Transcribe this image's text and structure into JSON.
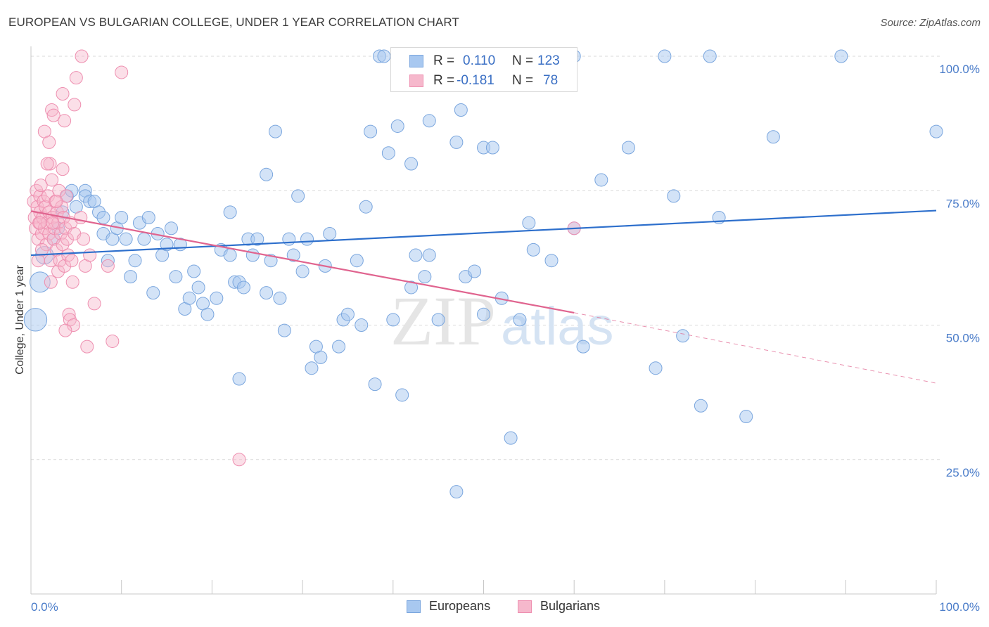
{
  "header": {
    "title": "EUROPEAN VS BULGARIAN COLLEGE, UNDER 1 YEAR CORRELATION CHART",
    "source": "Source: ZipAtlas.com"
  },
  "legend": {
    "rows": [
      {
        "r_label": "R =",
        "r_value": "0.110",
        "n_label": "N =",
        "n_value": "123"
      },
      {
        "r_label": "R =",
        "r_value": "-0.181",
        "n_label": "N =",
        "n_value": "78"
      }
    ]
  },
  "bottom_legend": [
    "Europeans",
    "Bulgarians"
  ],
  "watermark": {
    "zip": "ZIP",
    "atlas": "atlas"
  },
  "colors": {
    "europeans_fill": "#a8c8f0",
    "europeans_stroke": "#7aa6de",
    "europeans_line": "#2d6fcc",
    "bulgarians_fill": "#f6b8cc",
    "bulgarians_stroke": "#ee8fb0",
    "bulgarians_line": "#e0648f",
    "axis_label": "#4a7cc9",
    "grid": "#d9d9d9"
  },
  "chart_data": {
    "type": "scatter",
    "title": "EUROPEAN VS BULGARIAN COLLEGE, UNDER 1 YEAR CORRELATION CHART",
    "xlabel": "",
    "ylabel": "College, Under 1 year",
    "xlim": [
      0,
      100
    ],
    "ylim": [
      0,
      100
    ],
    "x_tick_labels": [
      "0.0%",
      "100.0%"
    ],
    "y_tick_labels": [
      "25.0%",
      "50.0%",
      "75.0%",
      "100.0%"
    ],
    "y_ticks": [
      25,
      50,
      75,
      100
    ],
    "grid": true,
    "legend_position": "top-center",
    "series": [
      {
        "name": "Europeans",
        "r": 0.11,
        "n": 123,
        "trend": {
          "x": [
            0,
            100
          ],
          "y": [
            63,
            71.3
          ]
        },
        "points": [
          [
            0.5,
            51,
            18
          ],
          [
            1,
            58,
            16
          ],
          [
            1.5,
            63,
            14
          ],
          [
            2.5,
            66,
            10
          ],
          [
            3,
            68,
            10
          ],
          [
            3.5,
            71,
            10
          ],
          [
            4,
            74,
            10
          ],
          [
            4.5,
            75,
            10
          ],
          [
            5,
            72,
            10
          ],
          [
            6,
            75,
            10
          ],
          [
            6,
            74,
            10
          ],
          [
            6.5,
            73,
            10
          ],
          [
            7,
            73,
            10
          ],
          [
            7.5,
            71,
            10
          ],
          [
            8,
            67,
            10
          ],
          [
            8,
            70,
            10
          ],
          [
            8.5,
            62,
            10
          ],
          [
            9,
            66,
            10
          ],
          [
            9.5,
            68,
            10
          ],
          [
            10,
            70,
            10
          ],
          [
            10.5,
            66,
            10
          ],
          [
            11,
            59,
            10
          ],
          [
            11.5,
            62,
            10
          ],
          [
            12,
            69,
            10
          ],
          [
            12.5,
            66,
            10
          ],
          [
            13,
            70,
            10
          ],
          [
            13.5,
            56,
            10
          ],
          [
            14,
            67,
            10
          ],
          [
            14.5,
            63,
            10
          ],
          [
            15,
            65,
            10
          ],
          [
            15.5,
            68,
            10
          ],
          [
            16,
            59,
            10
          ],
          [
            16.5,
            65,
            10
          ],
          [
            17,
            53,
            10
          ],
          [
            17.5,
            55,
            10
          ],
          [
            18,
            60,
            10
          ],
          [
            18.5,
            57,
            10
          ],
          [
            19,
            54,
            10
          ],
          [
            19.5,
            52,
            10
          ],
          [
            20.5,
            55,
            10
          ],
          [
            21,
            64,
            10
          ],
          [
            22,
            71,
            10
          ],
          [
            22,
            63,
            10
          ],
          [
            22.5,
            58,
            10
          ],
          [
            23,
            58,
            10
          ],
          [
            23.5,
            57,
            10
          ],
          [
            24,
            66,
            10
          ],
          [
            24.5,
            63,
            10
          ],
          [
            25,
            66,
            10
          ],
          [
            26,
            78,
            10
          ],
          [
            26,
            56,
            10
          ],
          [
            26.5,
            62,
            10
          ],
          [
            27,
            86,
            10
          ],
          [
            27.5,
            55,
            10
          ],
          [
            28,
            49,
            10
          ],
          [
            28.5,
            66,
            10
          ],
          [
            29,
            63,
            10
          ],
          [
            29.5,
            74,
            10
          ],
          [
            30,
            60,
            10
          ],
          [
            30.5,
            66,
            10
          ],
          [
            31,
            42,
            10
          ],
          [
            31.5,
            46,
            10
          ],
          [
            32,
            44,
            10
          ],
          [
            32.5,
            61,
            10
          ],
          [
            33,
            67,
            10
          ],
          [
            34,
            46,
            10
          ],
          [
            34.5,
            51,
            10
          ],
          [
            35,
            52,
            10
          ],
          [
            36,
            62,
            10
          ],
          [
            36.5,
            50,
            10
          ],
          [
            37,
            72,
            10
          ],
          [
            37.5,
            86,
            10
          ],
          [
            38,
            39,
            10
          ],
          [
            38.5,
            100,
            10
          ],
          [
            39,
            100,
            10
          ],
          [
            39.5,
            82,
            10
          ],
          [
            40,
            51,
            10
          ],
          [
            40.5,
            87,
            10
          ],
          [
            41,
            37,
            10
          ],
          [
            42,
            80,
            10
          ],
          [
            42,
            57,
            10
          ],
          [
            42.5,
            63,
            10
          ],
          [
            43.5,
            59,
            10
          ],
          [
            44,
            63,
            10
          ],
          [
            44.5,
            100,
            10
          ],
          [
            44.5,
            100,
            10
          ],
          [
            45,
            51,
            10
          ],
          [
            47,
            84,
            10
          ],
          [
            47.5,
            90,
            10
          ],
          [
            48,
            59,
            10
          ],
          [
            49,
            60,
            10
          ],
          [
            50,
            83,
            10
          ],
          [
            50,
            52,
            10
          ],
          [
            51,
            83,
            10
          ],
          [
            52,
            55,
            10
          ],
          [
            53,
            29,
            10
          ],
          [
            54,
            51,
            10
          ],
          [
            55,
            69,
            10
          ],
          [
            55.5,
            64,
            10
          ],
          [
            57,
            100,
            10
          ],
          [
            57.5,
            62,
            10
          ],
          [
            60,
            100,
            10
          ],
          [
            60,
            68,
            10
          ],
          [
            61,
            46,
            10
          ],
          [
            63,
            77,
            10
          ],
          [
            66,
            83,
            10
          ],
          [
            69,
            42,
            10
          ],
          [
            70,
            100,
            10
          ],
          [
            71,
            74,
            10
          ],
          [
            72,
            48,
            10
          ],
          [
            74,
            35,
            10
          ],
          [
            75,
            100,
            10
          ],
          [
            76,
            70,
            10
          ],
          [
            79,
            33,
            10
          ],
          [
            82,
            85,
            10
          ],
          [
            89.5,
            100,
            10
          ],
          [
            100,
            86,
            10
          ],
          [
            47,
            19,
            10
          ],
          [
            23,
            40,
            10
          ],
          [
            44,
            88,
            10
          ]
        ]
      },
      {
        "name": "Bulgarians",
        "r": -0.181,
        "n": 78,
        "trend": {
          "x": [
            0,
            60
          ],
          "y": [
            71.2,
            52.3
          ]
        },
        "trend_dashed": {
          "x": [
            60,
            100
          ],
          "y": [
            52.3,
            39.2
          ]
        },
        "points": [
          [
            0.3,
            73,
            10
          ],
          [
            0.4,
            70,
            10
          ],
          [
            0.5,
            68,
            10
          ],
          [
            0.6,
            75,
            10
          ],
          [
            0.7,
            72,
            10
          ],
          [
            0.8,
            66,
            10
          ],
          [
            0.9,
            69,
            10
          ],
          [
            1,
            74,
            10
          ],
          [
            1,
            71,
            10
          ],
          [
            1.1,
            76,
            10
          ],
          [
            1.2,
            67,
            10
          ],
          [
            1.3,
            70,
            10
          ],
          [
            1.4,
            73,
            10
          ],
          [
            1.5,
            68,
            10
          ],
          [
            1.6,
            72,
            10
          ],
          [
            1.7,
            65,
            10
          ],
          [
            1.8,
            69,
            10
          ],
          [
            1.9,
            74,
            10
          ],
          [
            2,
            71,
            10
          ],
          [
            2,
            67,
            10
          ],
          [
            2.1,
            80,
            10
          ],
          [
            2.2,
            62,
            10
          ],
          [
            2.3,
            77,
            10
          ],
          [
            2.4,
            70,
            10
          ],
          [
            2.5,
            66,
            10
          ],
          [
            2.6,
            68,
            10
          ],
          [
            2.7,
            73,
            10
          ],
          [
            2.8,
            64,
            10
          ],
          [
            2.9,
            71,
            10
          ],
          [
            3,
            69,
            10
          ],
          [
            3,
            60,
            10
          ],
          [
            3.1,
            75,
            10
          ],
          [
            3.2,
            62,
            10
          ],
          [
            3.3,
            67,
            10
          ],
          [
            3.4,
            72,
            10
          ],
          [
            3.5,
            65,
            10
          ],
          [
            3.6,
            70,
            10
          ],
          [
            3.7,
            61,
            10
          ],
          [
            3.8,
            68,
            10
          ],
          [
            3.9,
            74,
            10
          ],
          [
            4,
            66,
            10
          ],
          [
            4.1,
            63,
            10
          ],
          [
            4.2,
            52,
            10
          ],
          [
            4.3,
            51,
            10
          ],
          [
            4.4,
            69,
            10
          ],
          [
            4.5,
            62,
            10
          ],
          [
            4.6,
            58,
            10
          ],
          [
            4.7,
            50,
            10
          ],
          [
            4.8,
            67,
            10
          ],
          [
            1.5,
            86,
            10
          ],
          [
            1.8,
            80,
            10
          ],
          [
            2,
            84,
            10
          ],
          [
            2.3,
            90,
            10
          ],
          [
            2.5,
            89,
            10
          ],
          [
            3.5,
            93,
            10
          ],
          [
            3.7,
            88,
            10
          ],
          [
            4.8,
            91,
            10
          ],
          [
            5,
            96,
            10
          ],
          [
            5.5,
            70,
            10
          ],
          [
            5.8,
            66,
            10
          ],
          [
            6,
            61,
            10
          ],
          [
            6.2,
            46,
            10
          ],
          [
            6.5,
            63,
            10
          ],
          [
            7,
            54,
            10
          ],
          [
            8.5,
            61,
            10
          ],
          [
            9,
            47,
            10
          ],
          [
            5.6,
            100,
            10
          ],
          [
            10,
            97,
            10
          ],
          [
            3.5,
            79,
            10
          ],
          [
            2.8,
            73,
            10
          ],
          [
            1.2,
            64,
            10
          ],
          [
            2.2,
            58,
            10
          ],
          [
            3.8,
            49,
            10
          ],
          [
            60,
            68,
            10
          ],
          [
            23,
            25,
            10
          ],
          [
            1,
            69,
            10
          ],
          [
            2.4,
            69,
            10
          ],
          [
            0.8,
            62,
            10
          ]
        ]
      }
    ]
  }
}
